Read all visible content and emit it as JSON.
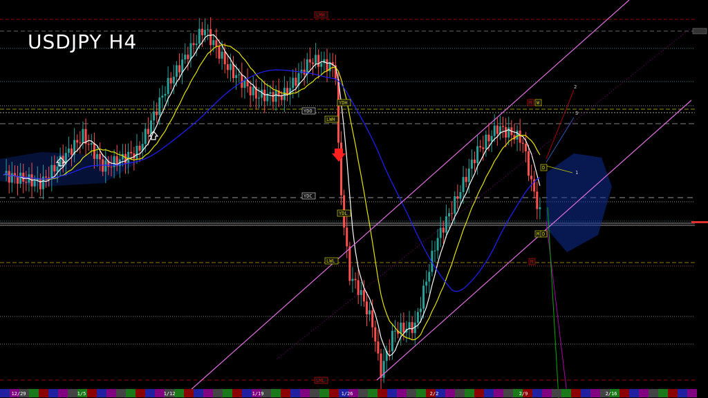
{
  "chart_data": {
    "type": "candlestick",
    "title": "USDJPY H4",
    "symbol": "USDJPY",
    "timeframe": "H4",
    "x_tick_labels": [
      "12/29",
      "1/5",
      "1/12",
      "1/19",
      "1/26",
      "2/2",
      "2/9",
      "2/16"
    ],
    "grid": false,
    "background": "#000000",
    "colors": {
      "bull": "#2aa198",
      "bear": "#ff5050",
      "ma_fast": "#ffffff",
      "ma_mid": "#e6e600",
      "ma_slow": "#2020ff",
      "channel": "#e070e0",
      "cloud": "#1030a0"
    },
    "approx_close_path": [
      56,
      54,
      66,
      58,
      62,
      78,
      93,
      83,
      76,
      76,
      85,
      83,
      60,
      48,
      31,
      27,
      18,
      6,
      17,
      18,
      39,
      50,
      62,
      68,
      65,
      53,
      44
    ],
    "level_labels": [
      "LMH",
      "YDH",
      "LWH",
      "YDO",
      "YDC",
      "YDL",
      "LWL",
      "LML",
      "M",
      "W",
      "D",
      "M",
      "D",
      "M"
    ],
    "line_labels": [
      "1",
      "2",
      "3"
    ],
    "price_label": "—"
  }
}
